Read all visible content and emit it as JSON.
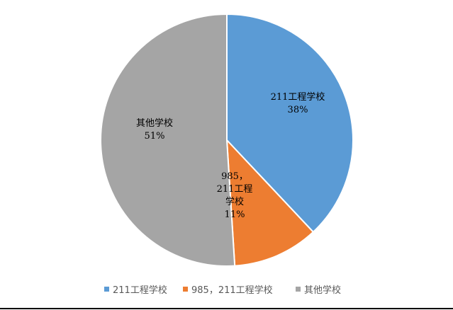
{
  "chart_data": {
    "type": "pie",
    "categories": [
      "211工程学校",
      "985，211工程学校",
      "其他学校"
    ],
    "values": [
      38,
      11,
      51
    ],
    "value_labels": [
      "38%",
      "11%",
      "51%"
    ],
    "slice_label_lines": [
      [
        "211工程学校",
        "38%"
      ],
      [
        "985，",
        "211工程",
        "学校",
        "11%"
      ],
      [
        "其他学校",
        "51%"
      ]
    ],
    "colors": [
      "#5B9BD5",
      "#ED7D31",
      "#A5A5A5"
    ],
    "start_angle": "top, clockwise",
    "legend_position": "bottom"
  }
}
